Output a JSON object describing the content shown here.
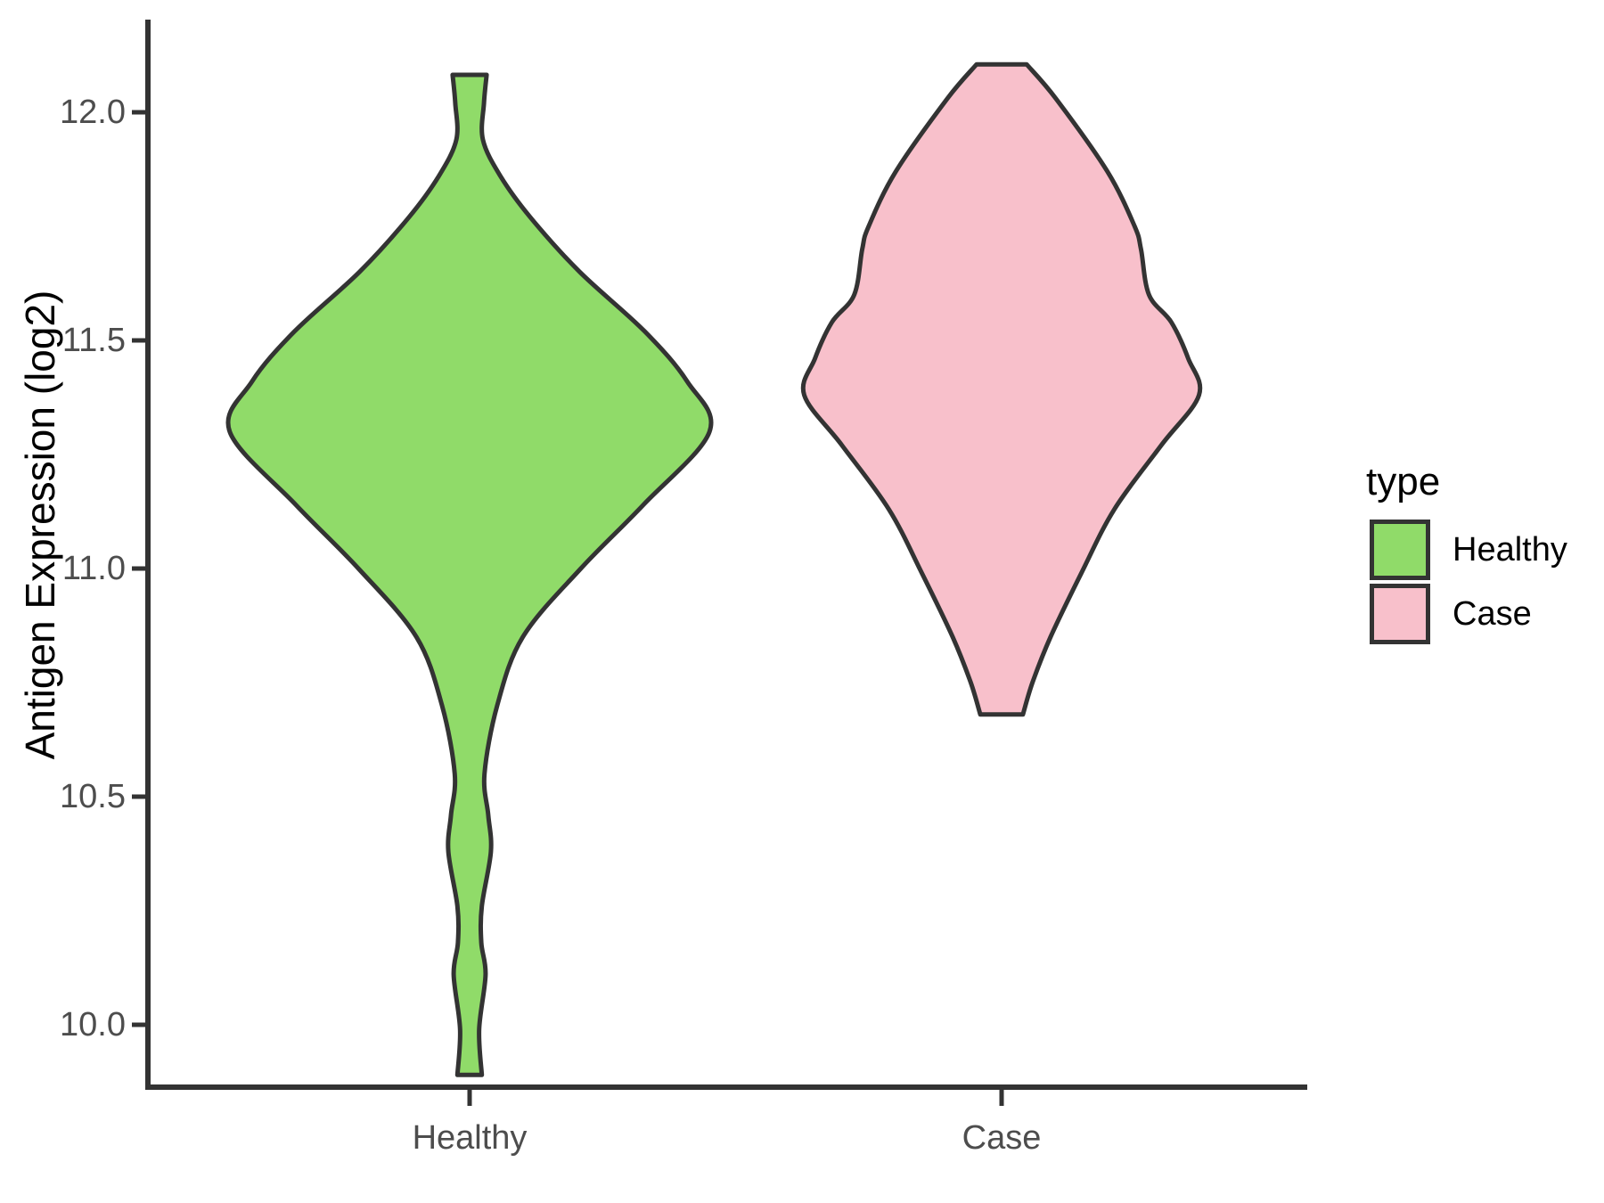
{
  "figure": {
    "background": "#ffffff",
    "text_color": "#000000",
    "tick_text_color": "#4d4d4d",
    "axis_color": "#333333"
  },
  "chart_data": {
    "type": "violin",
    "ylabel": "Antigen Expression (log2)",
    "categories": [
      "Healthy",
      "Case"
    ],
    "y_axis": {
      "ticks": [
        "12.0",
        "11.5",
        "11.0",
        "10.5",
        "10.0"
      ],
      "tick_values": [
        12.0,
        11.5,
        11.0,
        10.5,
        10.0
      ],
      "range": [
        9.85,
        12.2
      ],
      "grid": false
    },
    "legend": {
      "title": "type",
      "position": "right",
      "entries": [
        {
          "label": "Healthy",
          "color": "#90DB69"
        },
        {
          "label": "Case",
          "color": "#F8C0CB"
        }
      ]
    },
    "series": [
      {
        "name": "Healthy",
        "fill": "#90DB69",
        "outline": "#333333",
        "category_index": 0,
        "profile": [
          {
            "value": 12.082,
            "halfwidth": 0.032
          },
          {
            "value": 12.02,
            "halfwidth": 0.027
          },
          {
            "value": 11.94,
            "halfwidth": 0.025
          },
          {
            "value": 11.86,
            "halfwidth": 0.058
          },
          {
            "value": 11.77,
            "halfwidth": 0.114
          },
          {
            "value": 11.65,
            "halfwidth": 0.207
          },
          {
            "value": 11.52,
            "halfwidth": 0.329
          },
          {
            "value": 11.41,
            "halfwidth": 0.409
          },
          {
            "value": 11.3,
            "halfwidth": 0.451
          },
          {
            "value": 11.14,
            "halfwidth": 0.327
          },
          {
            "value": 11.0,
            "halfwidth": 0.209
          },
          {
            "value": 10.85,
            "halfwidth": 0.1
          },
          {
            "value": 10.7,
            "halfwidth": 0.052
          },
          {
            "value": 10.55,
            "halfwidth": 0.028
          },
          {
            "value": 10.46,
            "halfwidth": 0.035
          },
          {
            "value": 10.38,
            "halfwidth": 0.04
          },
          {
            "value": 10.26,
            "halfwidth": 0.023
          },
          {
            "value": 10.18,
            "halfwidth": 0.022
          },
          {
            "value": 10.11,
            "halfwidth": 0.03
          },
          {
            "value": 9.99,
            "halfwidth": 0.018
          },
          {
            "value": 9.89,
            "halfwidth": 0.023
          }
        ]
      },
      {
        "name": "Case",
        "fill": "#F8C0CB",
        "outline": "#333333",
        "category_index": 1,
        "profile": [
          {
            "value": 12.105,
            "halfwidth": 0.047
          },
          {
            "value": 12.03,
            "halfwidth": 0.102
          },
          {
            "value": 11.87,
            "halfwidth": 0.199
          },
          {
            "value": 11.75,
            "halfwidth": 0.25
          },
          {
            "value": 11.7,
            "halfwidth": 0.262
          },
          {
            "value": 11.6,
            "halfwidth": 0.277
          },
          {
            "value": 11.54,
            "halfwidth": 0.319
          },
          {
            "value": 11.46,
            "halfwidth": 0.351
          },
          {
            "value": 11.38,
            "halfwidth": 0.371
          },
          {
            "value": 11.27,
            "halfwidth": 0.3
          },
          {
            "value": 11.13,
            "halfwidth": 0.212
          },
          {
            "value": 10.99,
            "halfwidth": 0.15
          },
          {
            "value": 10.85,
            "halfwidth": 0.092
          },
          {
            "value": 10.75,
            "halfwidth": 0.058
          },
          {
            "value": 10.68,
            "halfwidth": 0.04
          }
        ]
      }
    ]
  }
}
